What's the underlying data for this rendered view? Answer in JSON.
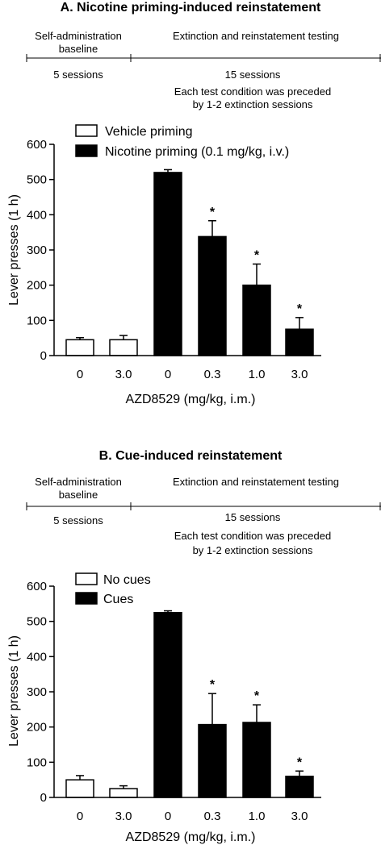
{
  "colors": {
    "ink": "#000000",
    "filled": "#000000",
    "open": "#ffffff"
  },
  "panels": [
    {
      "title": "A. Nicotine priming-induced reinstatement",
      "timeline": {
        "phase1": {
          "label_line1": "Self-administration",
          "label_line2": "baseline",
          "sessions": "5 sessions"
        },
        "phase2": {
          "label": "Extinction and reinstatement testing",
          "sessions": "15 sessions",
          "note_line1": "Each test condition was preceded",
          "note_line2": "by 1-2 extinction sessions"
        }
      },
      "legend": [
        {
          "label": "Vehicle priming",
          "fill": "open"
        },
        {
          "label": "Nicotine priming (0.1 mg/kg, i.v.)",
          "fill": "filled"
        }
      ]
    },
    {
      "title": "B. Cue-induced reinstatement",
      "timeline": {
        "phase1": {
          "label_line1": "Self-administration",
          "label_line2": "baseline",
          "sessions": "5 sessions"
        },
        "phase2": {
          "label": "Extinction and reinstatement testing",
          "sessions": "15 sessions",
          "note_line1": "Each test condition was preceded",
          "note_line2": "by 1-2 extinction sessions"
        }
      },
      "legend": [
        {
          "label": "No cues",
          "fill": "open"
        },
        {
          "label": "Cues",
          "fill": "filled"
        }
      ]
    }
  ],
  "chart_data": [
    {
      "type": "bar",
      "title": "A. Nicotine priming-induced reinstatement",
      "xlabel": "AZD8529 (mg/kg, i.m.)",
      "ylabel": "Lever presses (1 h)",
      "ylim": [
        0,
        600
      ],
      "yticks": [
        0,
        100,
        200,
        300,
        400,
        500,
        600
      ],
      "categories": [
        "0",
        "3.0",
        "0",
        "0.3",
        "1.0",
        "3.0"
      ],
      "values": [
        45,
        45,
        520,
        338,
        200,
        75
      ],
      "errors": [
        6,
        12,
        8,
        45,
        60,
        33
      ],
      "fills": [
        "open",
        "open",
        "filled",
        "filled",
        "filled",
        "filled"
      ],
      "significant": [
        false,
        false,
        false,
        true,
        true,
        true
      ],
      "significance_marker": "*"
    },
    {
      "type": "bar",
      "title": "B. Cue-induced reinstatement",
      "xlabel": "AZD8529 (mg/kg, i.m.)",
      "ylabel": "Lever presses (1 h)",
      "ylim": [
        0,
        600
      ],
      "yticks": [
        0,
        100,
        200,
        300,
        400,
        500,
        600
      ],
      "categories": [
        "0",
        "3.0",
        "0",
        "0.3",
        "1.0",
        "3.0"
      ],
      "values": [
        50,
        25,
        525,
        207,
        213,
        60
      ],
      "errors": [
        12,
        8,
        5,
        88,
        50,
        15
      ],
      "fills": [
        "open",
        "open",
        "filled",
        "filled",
        "filled",
        "filled"
      ],
      "significant": [
        false,
        false,
        false,
        true,
        true,
        true
      ],
      "significance_marker": "*"
    }
  ]
}
